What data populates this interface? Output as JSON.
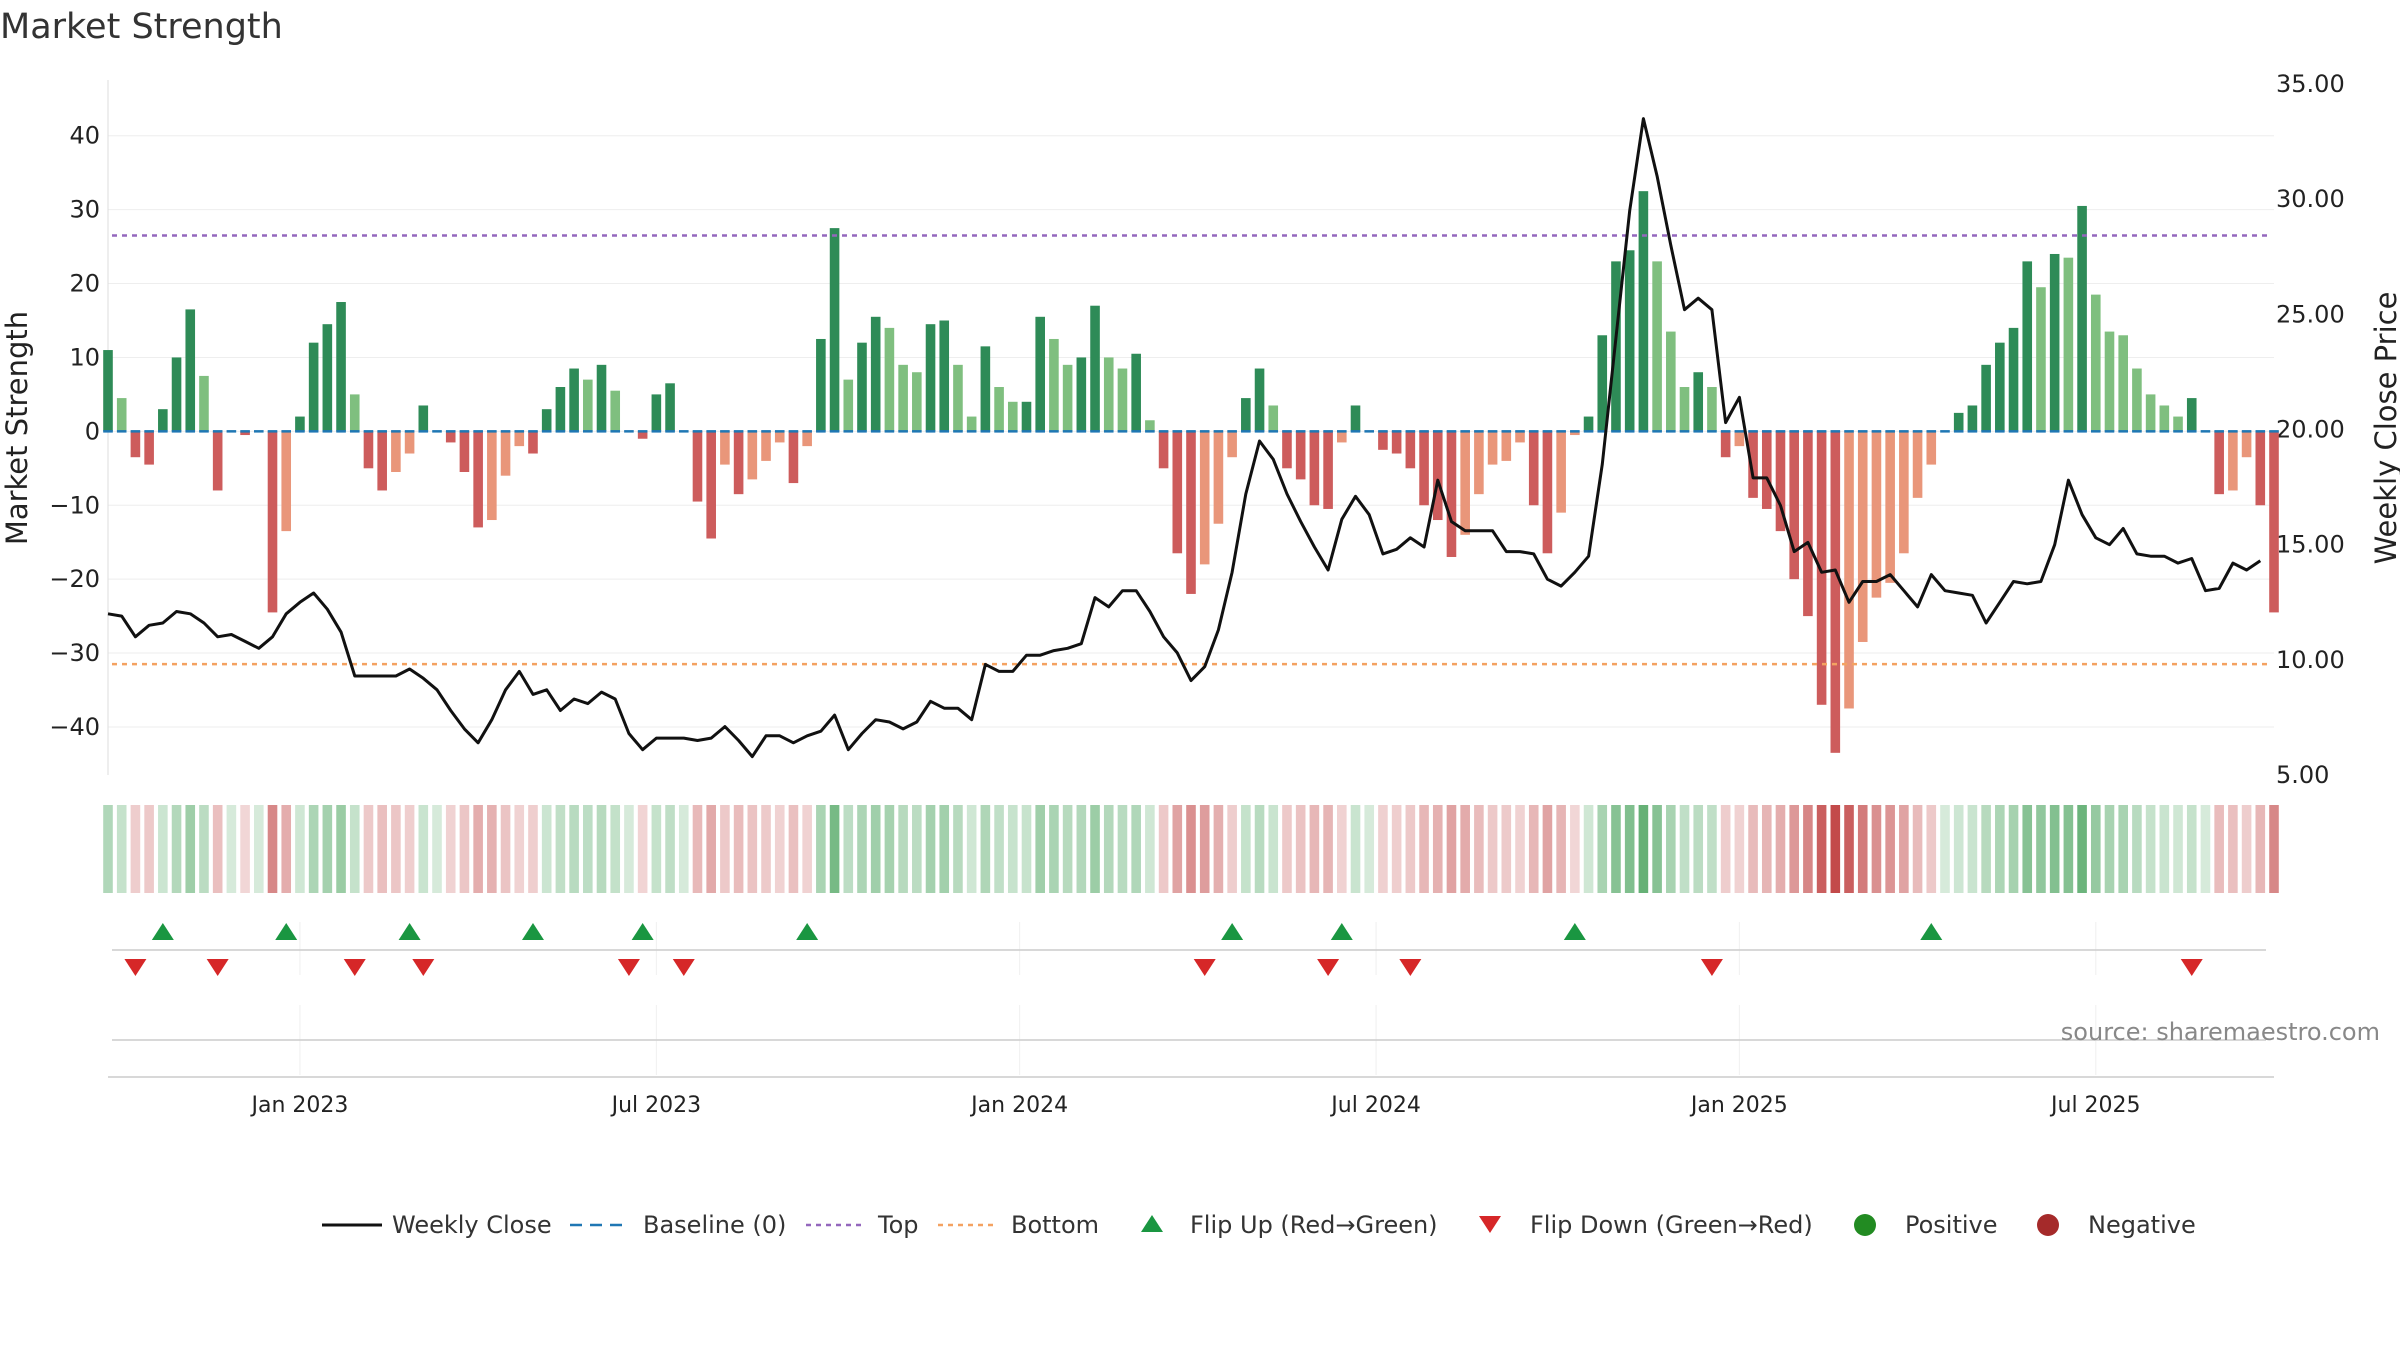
{
  "chart_data": {
    "type": "bar",
    "title": "Market Strength",
    "ylabel_left": "Market Strength",
    "ylabel_right": "Weekly Close Price",
    "source": "source: sharemaestro.com",
    "left_ticks": [
      "40",
      "30",
      "20",
      "10",
      "0",
      "−10",
      "−20",
      "−30",
      "−40"
    ],
    "left_tick_values": [
      40,
      30,
      20,
      10,
      0,
      -10,
      -20,
      -30,
      -40
    ],
    "right_ticks": [
      "35.00",
      "30.00",
      "25.00",
      "20.00",
      "15.00",
      "10.00",
      "5.00"
    ],
    "right_tick_values": [
      35,
      30,
      25,
      20,
      15,
      10,
      5
    ],
    "left_ylim": [
      -46.5,
      47
    ],
    "right_ylim": [
      5,
      35
    ],
    "date_labels": [
      "Jan 2023",
      "Jul 2023",
      "Jan 2024",
      "Jul 2024",
      "Jan 2025",
      "Jul 2025"
    ],
    "date_label_weeks": [
      14,
      40,
      66.5,
      92.5,
      119,
      145
    ],
    "top_line": 26.5,
    "bottom_line": -31.5,
    "legend": [
      "Weekly Close",
      "Baseline (0)",
      "Top",
      "Bottom",
      "Flip Up (Red→Green)",
      "Flip Down (Green→Red)",
      "Positive",
      "Negative"
    ],
    "series": [
      {
        "name": "Market Strength",
        "values": [
          11,
          4.5,
          -3.5,
          -4.5,
          3,
          10,
          16.5,
          7.5,
          -8,
          0,
          -0.5,
          0,
          -24.5,
          -13.5,
          2,
          12,
          14.5,
          17.5,
          5,
          -5,
          -8,
          -5.5,
          -3,
          3.5,
          0,
          -1.5,
          -5.5,
          -13,
          -12,
          -6,
          -2,
          -3,
          3,
          6,
          8.5,
          7,
          9,
          5.5,
          0,
          -1,
          5,
          6.5,
          0,
          -9.5,
          -14.5,
          -4.5,
          -8.5,
          -6.5,
          -4,
          -1.5,
          -7,
          -2,
          12.5,
          27.5,
          7,
          12,
          15.5,
          14,
          9,
          8,
          14.5,
          15,
          9,
          2,
          11.5,
          6,
          4,
          4,
          15.5,
          12.5,
          9,
          10,
          17,
          10,
          8.5,
          10.5,
          1.5,
          -5,
          -16.5,
          -22,
          -18,
          -12.5,
          -3.5,
          4.5,
          8.5,
          3.5,
          -5,
          -6.5,
          -10,
          -10.5,
          -1.5,
          3.5,
          0,
          -2.5,
          -3,
          -5,
          -10,
          -12,
          -17,
          -14,
          -8.5,
          -4.5,
          -4,
          -1.5,
          -10,
          -16.5,
          -11,
          -0.5,
          2,
          13,
          23,
          24.5,
          32.5,
          23,
          13.5,
          6,
          8,
          6,
          -3.5,
          -2,
          -9,
          -10.5,
          -13.5,
          -20,
          -25,
          -37,
          -43.5,
          -37.5,
          -28.5,
          -22.5,
          -20.5,
          -16.5,
          -9,
          -4.5,
          0,
          2.5,
          3.5,
          9,
          12,
          14,
          23,
          19.5,
          24,
          23.5,
          30.5,
          18.5,
          13.5,
          13,
          8.5,
          5,
          3.5,
          2,
          4.5,
          0,
          -8.5,
          -8,
          -3.5,
          -10,
          -24.5
        ]
      },
      {
        "name": "Weekly Close",
        "values": [
          12,
          11.9,
          11,
          11.5,
          11.6,
          12.1,
          12,
          11.6,
          11,
          11.1,
          10.8,
          10.5,
          11,
          12,
          12.5,
          12.9,
          12.2,
          11.2,
          9.3,
          9.3,
          9.3,
          9.3,
          9.6,
          9.2,
          8.7,
          7.8,
          7,
          6.4,
          7.4,
          8.7,
          9.5,
          8.5,
          8.7,
          7.8,
          8.3,
          8.1,
          8.6,
          8.3,
          6.8,
          6.1,
          6.6,
          6.6,
          6.6,
          6.5,
          6.6,
          7.1,
          6.5,
          5.8,
          6.7,
          6.7,
          6.4,
          6.7,
          6.9,
          7.6,
          6.1,
          6.8,
          7.4,
          7.3,
          7,
          7.3,
          8.2,
          7.9,
          7.9,
          7.4,
          9.8,
          9.5,
          9.5,
          10.2,
          10.2,
          10.4,
          10.5,
          10.7,
          12.7,
          12.3,
          13,
          13,
          12.1,
          11,
          10.3,
          9.1,
          9.7,
          11.3,
          13.8,
          17.2,
          19.5,
          18.7,
          17.2,
          16,
          14.9,
          13.9,
          16.1,
          17.1,
          16.3,
          14.6,
          14.8,
          15.3,
          14.9,
          17.8,
          16,
          15.6,
          15.6,
          15.6,
          14.7,
          14.7,
          14.6,
          13.5,
          13.2,
          13.8,
          14.5,
          18.5,
          24,
          29.5,
          33.5,
          31,
          28,
          25.2,
          25.7,
          25.2,
          20.3,
          21.4,
          17.9,
          17.9,
          16.7,
          14.7,
          15.1,
          13.8,
          13.9,
          12.5,
          13.4,
          13.4,
          13.7,
          13,
          12.3,
          13.7,
          13,
          12.9,
          12.8,
          11.6,
          12.5,
          13.4,
          13.3,
          13.4,
          15,
          17.8,
          16.3,
          15.3,
          15,
          15.7,
          14.6,
          14.5,
          14.5,
          14.2,
          14.4,
          13,
          13.1,
          14.2,
          13.9,
          14.3
        ]
      }
    ],
    "flip_up_weeks": [
      4,
      13,
      22,
      31,
      39,
      51,
      82,
      90,
      107,
      133
    ],
    "flip_down_weeks": [
      2,
      8,
      18,
      23,
      38,
      42,
      80,
      89,
      95,
      117,
      152
    ],
    "colors": {
      "pos_strong": "#2e8b57",
      "pos_weak": "#7fbf7f",
      "neg_strong": "#cd5c5c",
      "neg_weak": "#e9967a",
      "close": "#111111",
      "baseline": "#1f77b4",
      "top": "#9467bd",
      "bottom": "#f4a261",
      "flip_up": "#1a9641",
      "flip_down": "#d62728",
      "positive_dot": "#228b22",
      "negative_dot": "#a52a2a"
    }
  }
}
